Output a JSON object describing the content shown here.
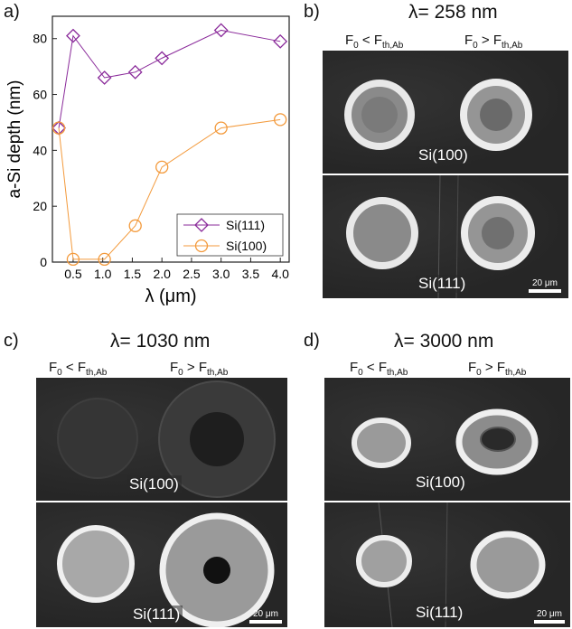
{
  "chart_data": {
    "type": "line",
    "xlabel": "λ (μm)",
    "ylabel": "a-Si depth (nm)",
    "xlim": [
      0.15,
      4.15
    ],
    "ylim": [
      0,
      88
    ],
    "xticks": [
      "0.5",
      "1.0",
      "1.5",
      "2.0",
      "2.5",
      "3.0",
      "3.5",
      "4.0"
    ],
    "yticks": [
      "0",
      "20",
      "40",
      "60",
      "80"
    ],
    "legend_position": "bottom-right",
    "series": [
      {
        "name": "Si(111)",
        "marker": "diamond",
        "color": "#8a2a9a",
        "x": [
          0.258,
          0.5,
          1.03,
          1.55,
          2.0,
          3.0,
          4.0
        ],
        "y": [
          48,
          81,
          66,
          68,
          73,
          83,
          79
        ]
      },
      {
        "name": "Si(100)",
        "marker": "circle",
        "color": "#f39a3c",
        "x": [
          0.258,
          0.5,
          1.03,
          1.55,
          2.0,
          3.0,
          4.0
        ],
        "y": [
          48,
          1,
          1,
          13,
          34,
          48,
          51
        ]
      }
    ]
  },
  "panels": {
    "a": {
      "letter": "a)"
    },
    "b": {
      "letter": "b)",
      "title": "λ= 258 nm",
      "cond_left": "F",
      "cond_left_sub0": "0",
      "cond_left_op": " < F",
      "cond_left_sub1": "th,Ab",
      "cond_right": "F",
      "cond_right_sub0": "0",
      "cond_right_op": " > F",
      "cond_right_sub1": "th,Ab",
      "top_label": "Si(100)",
      "bottom_label": "Si(111)",
      "scale": "20 μm"
    },
    "c": {
      "letter": "c)",
      "title": "λ= 1030 nm",
      "cond_left": "F",
      "cond_left_sub0": "0",
      "cond_left_op": " < F",
      "cond_left_sub1": "th,Ab",
      "cond_right": "F",
      "cond_right_sub0": "0",
      "cond_right_op": " > F",
      "cond_right_sub1": "th,Ab",
      "top_label": "Si(100)",
      "bottom_label": "Si(111)",
      "scale": "20 μm"
    },
    "d": {
      "letter": "d)",
      "title": "λ= 3000 nm",
      "cond_left": "F",
      "cond_left_sub0": "0",
      "cond_left_op": " < F",
      "cond_left_sub1": "th,Ab",
      "cond_right": "F",
      "cond_right_sub0": "0",
      "cond_right_op": " > F",
      "cond_right_sub1": "th,Ab",
      "top_label": "Si(100)",
      "bottom_label": "Si(111)",
      "scale": "20 μm"
    }
  }
}
